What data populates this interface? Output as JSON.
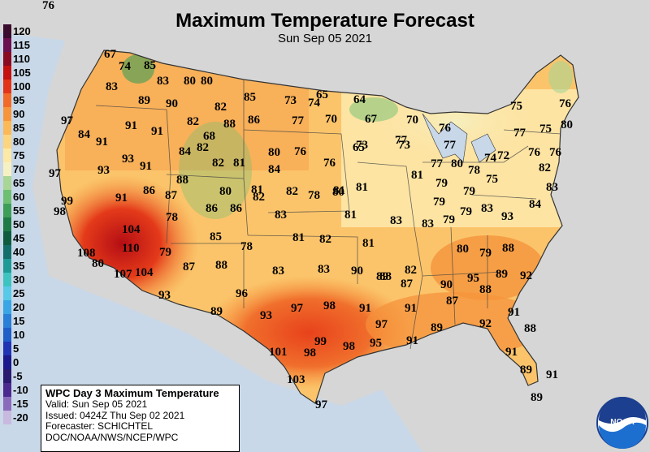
{
  "title": "Maximum Temperature Forecast",
  "subtitle": "Sun Sep 05 2021",
  "legend": [
    {
      "label": "120",
      "color": "#3a0c2e"
    },
    {
      "label": "115",
      "color": "#6b0f4f"
    },
    {
      "label": "110",
      "color": "#8a0a22"
    },
    {
      "label": "105",
      "color": "#c4100f"
    },
    {
      "label": "100",
      "color": "#e23418"
    },
    {
      "label": "95",
      "color": "#f26a2a"
    },
    {
      "label": "90",
      "color": "#f7953c"
    },
    {
      "label": "85",
      "color": "#fbb957"
    },
    {
      "label": "80",
      "color": "#fdd57e"
    },
    {
      "label": "75",
      "color": "#fde9a6"
    },
    {
      "label": "70",
      "color": "#f5f1c3"
    },
    {
      "label": "65",
      "color": "#a9d694"
    },
    {
      "label": "60",
      "color": "#6fbf72"
    },
    {
      "label": "55",
      "color": "#3d9e57"
    },
    {
      "label": "50",
      "color": "#1f7b45"
    },
    {
      "label": "45",
      "color": "#0f5c3f"
    },
    {
      "label": "40",
      "color": "#146e6a"
    },
    {
      "label": "35",
      "color": "#1d9a96"
    },
    {
      "label": "30",
      "color": "#3ec4c0"
    },
    {
      "label": "25",
      "color": "#59c9e8"
    },
    {
      "label": "20",
      "color": "#3aa6e6"
    },
    {
      "label": "15",
      "color": "#2a7fd6"
    },
    {
      "label": "10",
      "color": "#1f5fc7"
    },
    {
      "label": "5",
      "color": "#2034b4"
    },
    {
      "label": "0",
      "color": "#1a1a8c"
    },
    {
      "label": "-5",
      "color": "#2a1a70"
    },
    {
      "label": "-10",
      "color": "#4b2a90"
    },
    {
      "label": "-15",
      "color": "#8a6bbb"
    },
    {
      "label": "-20",
      "color": "#c8b9df"
    }
  ],
  "temperatures": [
    "67",
    "74",
    "85",
    "83",
    "80",
    "80",
    "83",
    "89",
    "90",
    "82",
    "85",
    "73",
    "74",
    "65",
    "64",
    "97",
    "91",
    "91",
    "82",
    "88",
    "86",
    "77",
    "70",
    "67",
    "70",
    "76",
    "75",
    "76",
    "65",
    "91",
    "68",
    "73",
    "77",
    "77",
    "73",
    "77",
    "75",
    "80",
    "84",
    "93",
    "91",
    "84",
    "82",
    "82",
    "81",
    "80",
    "76",
    "76",
    "81",
    "77",
    "80",
    "78",
    "74",
    "72",
    "76",
    "76",
    "82",
    "76",
    "97",
    "93",
    "88",
    "84",
    "82",
    "78",
    "81",
    "81",
    "79",
    "79",
    "75",
    "83",
    "99",
    "91",
    "86",
    "87",
    "80",
    "81",
    "80",
    "79",
    "84",
    "98",
    "78",
    "86",
    "83",
    "81",
    "82",
    "83",
    "83",
    "79",
    "83",
    "93",
    "104",
    "86",
    "85",
    "81",
    "82",
    "81",
    "79",
    "79",
    "110",
    "108",
    "80",
    "79",
    "88",
    "87",
    "78",
    "83",
    "83",
    "90",
    "89",
    "80",
    "88",
    "107",
    "104",
    "82",
    "88",
    "87",
    "90",
    "95",
    "88",
    "89",
    "92",
    "93",
    "96",
    "97",
    "98",
    "91",
    "91",
    "87",
    "93",
    "97",
    "89",
    "92",
    "91",
    "88",
    "101",
    "98",
    "99",
    "98",
    "95",
    "91",
    "89",
    "103",
    "91",
    "89",
    "91",
    "97",
    "89"
  ],
  "info": {
    "title": "WPC Day 3 Maximum Temperature",
    "valid": "Valid: Sun Sep 05 2021",
    "issued": "Issued: 0424Z Thu Sep 02 2021",
    "forecaster": "Forecaster: SCHICHTEL",
    "agency": "DOC/NOAA/NWS/NCEP/WPC"
  },
  "logo_text": "NOAA",
  "colors": {
    "ocean": "#c8d8e8",
    "foreign_land": "#d6d6d6",
    "border": "#333333"
  }
}
